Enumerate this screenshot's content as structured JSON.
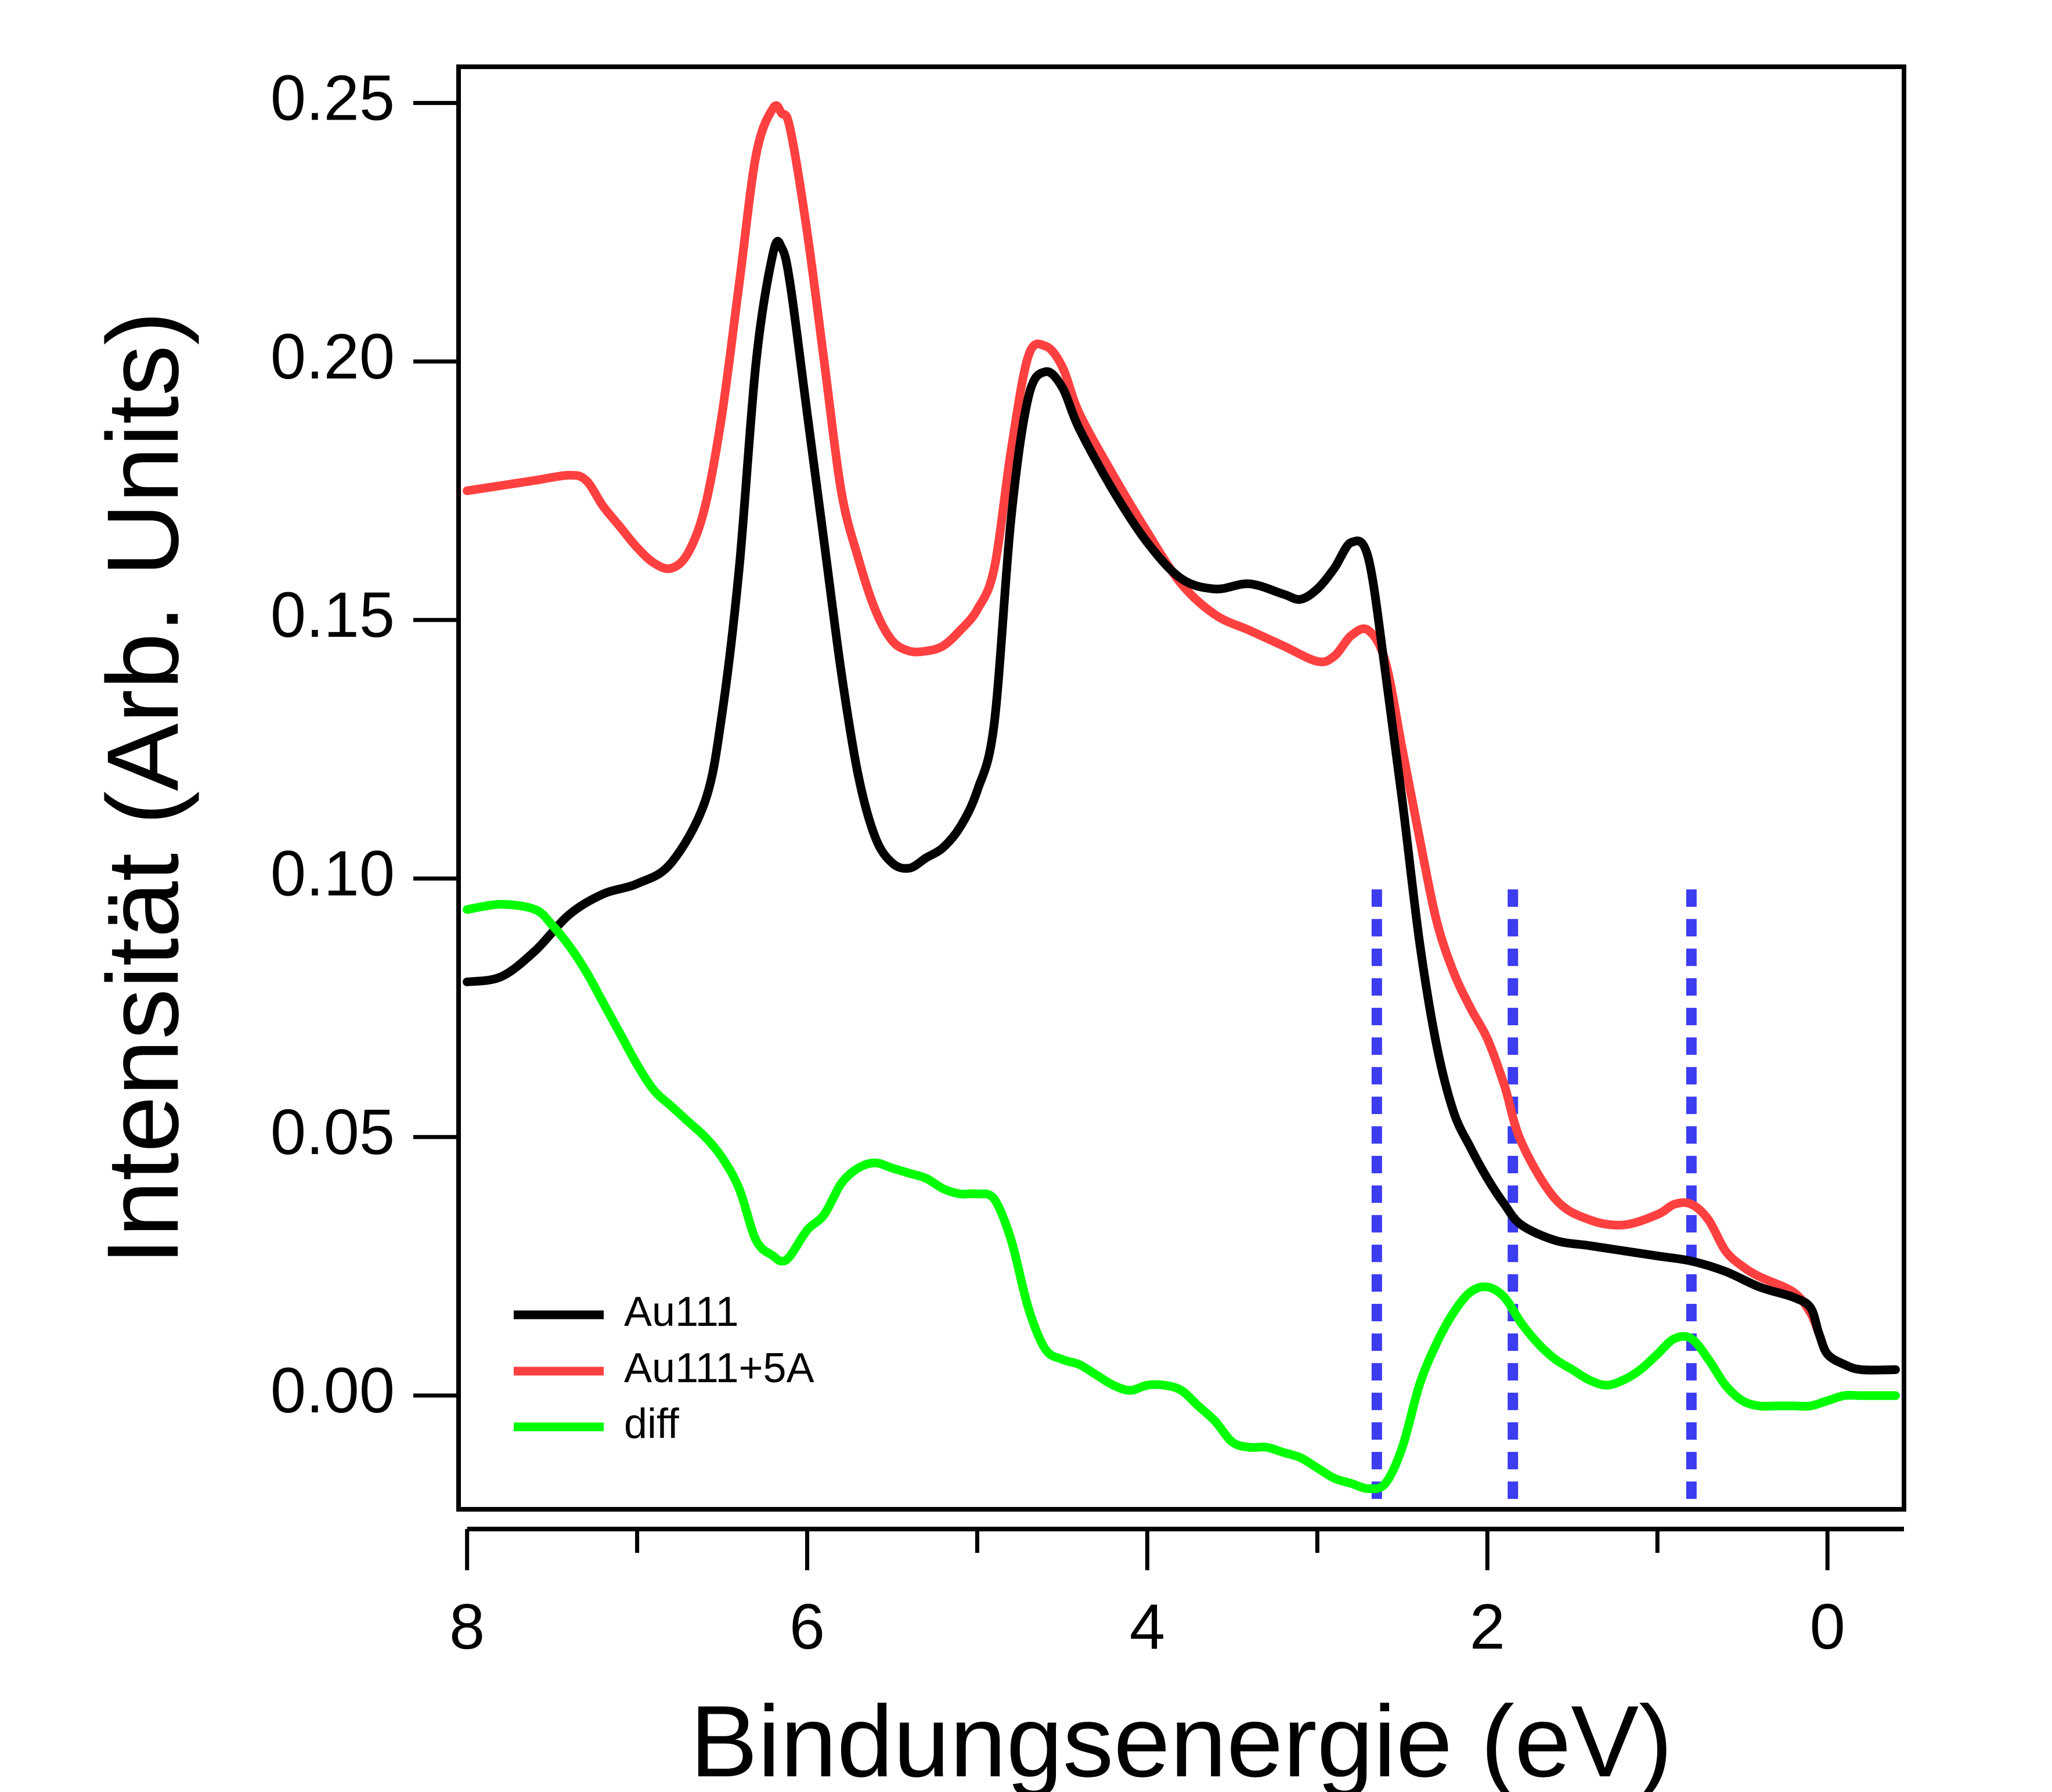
{
  "chart_data": {
    "type": "line",
    "title": "",
    "xlabel": "Bindungsenergie (eV)",
    "ylabel": "Intensität (Arb. Units)",
    "xlim": [
      8.05,
      -0.45
    ],
    "ylim": [
      -0.022,
      0.257
    ],
    "x_reversed": true,
    "grid": false,
    "legend_position": "bottom-left",
    "x_ticks": [
      8,
      6,
      4,
      2,
      0
    ],
    "x_tick_labels": [
      "8",
      "6",
      "4",
      "2",
      "0"
    ],
    "y_ticks": [
      0.0,
      0.05,
      0.1,
      0.15,
      0.2,
      0.25
    ],
    "y_tick_labels": [
      "0.00",
      "0.05",
      "0.10",
      "0.15",
      "0.20",
      "0.25"
    ],
    "series": [
      {
        "name": "Au111",
        "color": "#000000",
        "x": [
          8.0,
          7.8,
          7.6,
          7.4,
          7.2,
          7.0,
          6.8,
          6.6,
          6.5,
          6.4,
          6.3,
          6.2,
          6.15,
          6.1,
          6.0,
          5.9,
          5.8,
          5.7,
          5.6,
          5.5,
          5.4,
          5.3,
          5.2,
          5.1,
          5.0,
          4.9,
          4.8,
          4.7,
          4.6,
          4.5,
          4.4,
          4.2,
          4.0,
          3.8,
          3.6,
          3.4,
          3.2,
          3.1,
          3.0,
          2.9,
          2.8,
          2.7,
          2.6,
          2.5,
          2.4,
          2.3,
          2.2,
          2.1,
          2.0,
          1.9,
          1.8,
          1.6,
          1.4,
          1.2,
          1.0,
          0.8,
          0.6,
          0.4,
          0.2,
          0.1,
          0.05,
          0.0,
          -0.1,
          -0.2,
          -0.4
        ],
        "values": [
          0.08,
          0.081,
          0.086,
          0.093,
          0.097,
          0.099,
          0.103,
          0.115,
          0.132,
          0.16,
          0.2,
          0.221,
          0.222,
          0.215,
          0.19,
          0.165,
          0.14,
          0.12,
          0.108,
          0.103,
          0.102,
          0.104,
          0.106,
          0.11,
          0.117,
          0.13,
          0.17,
          0.193,
          0.198,
          0.195,
          0.187,
          0.175,
          0.165,
          0.158,
          0.156,
          0.157,
          0.155,
          0.154,
          0.156,
          0.16,
          0.165,
          0.162,
          0.14,
          0.115,
          0.088,
          0.068,
          0.055,
          0.048,
          0.042,
          0.037,
          0.033,
          0.03,
          0.029,
          0.028,
          0.027,
          0.026,
          0.024,
          0.021,
          0.019,
          0.017,
          0.012,
          0.008,
          0.006,
          0.005,
          0.005
        ]
      },
      {
        "name": "Au111+5A",
        "color": "#ff4040",
        "x": [
          8.0,
          7.8,
          7.6,
          7.4,
          7.3,
          7.2,
          7.1,
          7.0,
          6.9,
          6.8,
          6.7,
          6.6,
          6.5,
          6.4,
          6.3,
          6.2,
          6.15,
          6.1,
          6.0,
          5.9,
          5.8,
          5.7,
          5.6,
          5.5,
          5.4,
          5.3,
          5.2,
          5.1,
          5.0,
          4.9,
          4.8,
          4.7,
          4.6,
          4.5,
          4.4,
          4.2,
          4.0,
          3.8,
          3.6,
          3.4,
          3.2,
          3.0,
          2.9,
          2.8,
          2.7,
          2.6,
          2.5,
          2.4,
          2.3,
          2.2,
          2.1,
          2.0,
          1.9,
          1.8,
          1.6,
          1.4,
          1.2,
          1.0,
          0.9,
          0.8,
          0.7,
          0.6,
          0.5,
          0.4,
          0.2,
          0.1,
          0.05,
          0.0,
          -0.1,
          -0.2,
          -0.4
        ],
        "values": [
          0.175,
          0.176,
          0.177,
          0.178,
          0.177,
          0.172,
          0.168,
          0.164,
          0.161,
          0.16,
          0.163,
          0.172,
          0.19,
          0.215,
          0.24,
          0.249,
          0.248,
          0.245,
          0.225,
          0.2,
          0.175,
          0.162,
          0.152,
          0.146,
          0.144,
          0.144,
          0.145,
          0.148,
          0.152,
          0.16,
          0.183,
          0.201,
          0.203,
          0.199,
          0.19,
          0.178,
          0.167,
          0.157,
          0.151,
          0.148,
          0.145,
          0.142,
          0.143,
          0.147,
          0.148,
          0.142,
          0.125,
          0.108,
          0.092,
          0.082,
          0.075,
          0.069,
          0.06,
          0.049,
          0.038,
          0.034,
          0.033,
          0.035,
          0.037,
          0.037,
          0.034,
          0.028,
          0.025,
          0.023,
          0.02,
          0.016,
          0.012,
          0.008,
          0.006,
          0.005,
          0.005
        ]
      },
      {
        "name": "diff",
        "color": "#00ff00",
        "x": [
          8.0,
          7.8,
          7.6,
          7.5,
          7.4,
          7.3,
          7.2,
          7.1,
          7.0,
          6.9,
          6.8,
          6.7,
          6.6,
          6.5,
          6.4,
          6.3,
          6.2,
          6.15,
          6.1,
          6.0,
          5.9,
          5.8,
          5.7,
          5.6,
          5.5,
          5.4,
          5.3,
          5.2,
          5.1,
          5.0,
          4.9,
          4.8,
          4.7,
          4.6,
          4.5,
          4.4,
          4.3,
          4.2,
          4.1,
          4.0,
          3.9,
          3.8,
          3.7,
          3.6,
          3.5,
          3.4,
          3.3,
          3.2,
          3.1,
          3.0,
          2.9,
          2.8,
          2.7,
          2.6,
          2.5,
          2.4,
          2.3,
          2.2,
          2.1,
          2.0,
          1.9,
          1.8,
          1.7,
          1.6,
          1.5,
          1.4,
          1.3,
          1.2,
          1.1,
          1.0,
          0.9,
          0.8,
          0.7,
          0.6,
          0.5,
          0.4,
          0.3,
          0.2,
          0.1,
          0.0,
          -0.1,
          -0.2,
          -0.4
        ],
        "values": [
          0.094,
          0.095,
          0.094,
          0.091,
          0.087,
          0.082,
          0.076,
          0.07,
          0.064,
          0.059,
          0.056,
          0.053,
          0.05,
          0.046,
          0.04,
          0.03,
          0.027,
          0.026,
          0.027,
          0.032,
          0.035,
          0.041,
          0.044,
          0.045,
          0.044,
          0.043,
          0.042,
          0.04,
          0.039,
          0.039,
          0.038,
          0.03,
          0.017,
          0.009,
          0.007,
          0.006,
          0.004,
          0.002,
          0.001,
          0.002,
          0.002,
          0.001,
          -0.002,
          -0.005,
          -0.009,
          -0.01,
          -0.01,
          -0.011,
          -0.012,
          -0.014,
          -0.016,
          -0.017,
          -0.018,
          -0.017,
          -0.01,
          0.002,
          0.01,
          0.016,
          0.02,
          0.021,
          0.019,
          0.014,
          0.01,
          0.007,
          0.005,
          0.003,
          0.002,
          0.003,
          0.005,
          0.008,
          0.011,
          0.011,
          0.007,
          0.002,
          -0.001,
          -0.002,
          -0.002,
          -0.002,
          -0.002,
          -0.001,
          0.0,
          0.0,
          0.0
        ]
      }
    ],
    "markers": {
      "color": "#3c3cf0",
      "style": "dotted",
      "x": [
        2.65,
        1.85,
        0.8
      ],
      "y_range": [
        -0.02,
        0.1
      ]
    }
  }
}
